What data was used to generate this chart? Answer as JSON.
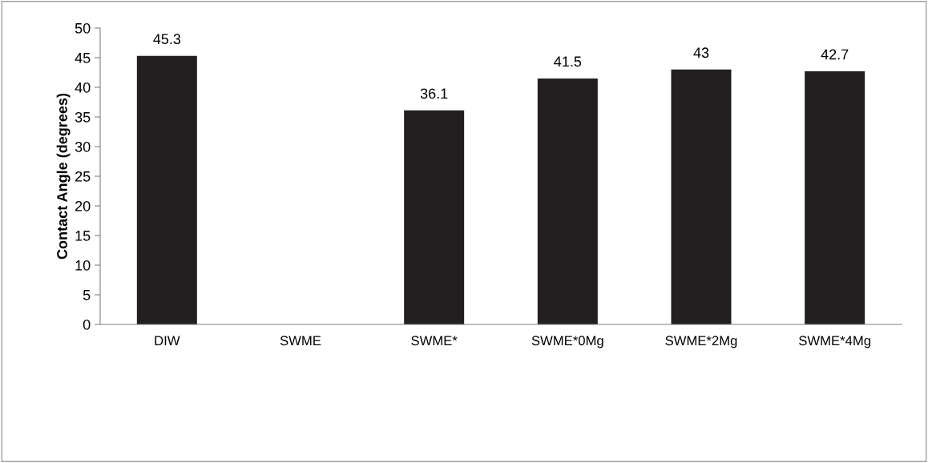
{
  "chart_data": {
    "type": "bar",
    "ylabel": "Contact Angle (degrees)",
    "categories": [
      "DIW",
      "SWME",
      "SWME*",
      "SWME*0Mg",
      "SWME*2Mg",
      "SWME*4Mg"
    ],
    "values": [
      45.3,
      null,
      36.1,
      41.5,
      43,
      42.7
    ],
    "color": "#231f20",
    "ylim": [
      0,
      50
    ],
    "yticks": [
      0,
      5,
      10,
      15,
      20,
      25,
      30,
      35,
      40,
      45,
      50
    ],
    "data_labels": true,
    "grid": false
  }
}
